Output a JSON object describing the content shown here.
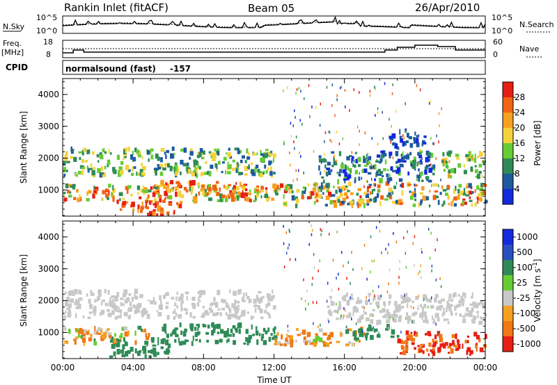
{
  "header": {
    "station_title": "Rankin Inlet (fitACF)",
    "beam_label": "Beam 05",
    "date_label": "26/Apr/2010"
  },
  "noise_panel": {
    "left_label": "N.Sky",
    "right_label": "N.Search",
    "left_ticks": [
      "10^5",
      "10^0"
    ],
    "right_ticks": [
      "10^5",
      "10^0"
    ]
  },
  "freq_panel": {
    "left_label_top": "Freq.",
    "left_label_unit": "[MHz]",
    "right_label": "Nave",
    "left_ticks": [
      "18",
      "8"
    ],
    "right_ticks": [
      "60",
      "0"
    ]
  },
  "cpid": {
    "label": "CPID",
    "program": "normalsound (fast)",
    "id": "-157"
  },
  "colors": {
    "power": [
      "#1428dc",
      "#1e5aa0",
      "#2e8b57",
      "#66cc33",
      "#f5d23c",
      "#f5a020",
      "#f06414",
      "#e61e14"
    ],
    "velocity": [
      "#1428dc",
      "#2a4fc0",
      "#2e8b57",
      "#66cc33",
      "#c8c8c8",
      "#f5a020",
      "#f07814",
      "#e61e14"
    ]
  },
  "chart_data": [
    {
      "type": "heatmap",
      "title": "Power",
      "xlabel": "",
      "ylabel": "Slant Range [km]",
      "xlim": [
        "00:00",
        "24:00"
      ],
      "ylim": [
        180,
        4500
      ],
      "y_ticks": [
        "1000",
        "2000",
        "3000",
        "4000"
      ],
      "colorbar": {
        "label": "Power [dB]",
        "ticks": [
          "4",
          "8",
          "12",
          "16",
          "20",
          "24",
          "28"
        ],
        "range": [
          0,
          32
        ]
      },
      "regions": [
        {
          "t_start": 0.0,
          "t_end": 12.3,
          "r_min": 650,
          "r_max": 1150,
          "value_min": 8,
          "value_max": 30
        },
        {
          "t_start": 0.0,
          "t_end": 12.0,
          "r_min": 1450,
          "r_max": 2300,
          "value_min": 4,
          "value_max": 20
        },
        {
          "t_start": 3.0,
          "t_end": 6.8,
          "r_min": 220,
          "r_max": 650,
          "value_min": 20,
          "value_max": 32
        },
        {
          "t_start": 5.0,
          "t_end": 10.5,
          "r_min": 800,
          "r_max": 1250,
          "value_min": 18,
          "value_max": 32
        },
        {
          "t_start": 12.0,
          "t_end": 24.0,
          "r_min": 500,
          "r_max": 1200,
          "value_min": 4,
          "value_max": 30
        },
        {
          "t_start": 14.5,
          "t_end": 21.0,
          "r_min": 1250,
          "r_max": 2200,
          "value_min": 2,
          "value_max": 14
        },
        {
          "t_start": 18.5,
          "t_end": 20.5,
          "r_min": 2300,
          "r_max": 2900,
          "value_min": 2,
          "value_max": 8
        },
        {
          "t_start": 21.5,
          "t_end": 24.0,
          "r_min": 1400,
          "r_max": 2200,
          "value_min": 8,
          "value_max": 22
        }
      ]
    },
    {
      "type": "heatmap",
      "title": "Velocity",
      "xlabel": "Time UT",
      "ylabel": "Slant Range [km]",
      "xlim": [
        "00:00",
        "24:00"
      ],
      "ylim": [
        180,
        4500
      ],
      "x_ticks": [
        "00:00",
        "04:00",
        "08:00",
        "12:00",
        "16:00",
        "20:00",
        "00:00"
      ],
      "y_ticks": [
        "1000",
        "2000",
        "3000",
        "4000"
      ],
      "colorbar": {
        "label": "Velocity [m s^-1]",
        "ticks": [
          "1000",
          "500",
          "100",
          "25",
          "-25",
          "-100",
          "-500",
          "-1000"
        ]
      },
      "regions": [
        {
          "t_start": 0.0,
          "t_end": 12.0,
          "r_min": 1450,
          "r_max": 2300,
          "value_min": -25,
          "value_max": 25
        },
        {
          "t_start": 0.0,
          "t_end": 5.0,
          "r_min": 650,
          "r_max": 1150,
          "value_min": -300,
          "value_max": 150
        },
        {
          "t_start": 2.5,
          "t_end": 6.0,
          "r_min": 220,
          "r_max": 800,
          "value_min": 100,
          "value_max": 500
        },
        {
          "t_start": 5.5,
          "t_end": 12.0,
          "r_min": 650,
          "r_max": 1250,
          "value_min": 100,
          "value_max": 500
        },
        {
          "t_start": 12.0,
          "t_end": 17.0,
          "r_min": 600,
          "r_max": 1100,
          "value_min": -300,
          "value_max": 50
        },
        {
          "t_start": 16.0,
          "t_end": 19.0,
          "r_min": 800,
          "r_max": 1200,
          "value_min": 100,
          "value_max": 500
        },
        {
          "t_start": 15.0,
          "t_end": 24.0,
          "r_min": 1300,
          "r_max": 2200,
          "value_min": -25,
          "value_max": 25
        },
        {
          "t_start": 19.0,
          "t_end": 24.0,
          "r_min": 300,
          "r_max": 1000,
          "value_min": -1000,
          "value_max": -100
        }
      ]
    }
  ]
}
